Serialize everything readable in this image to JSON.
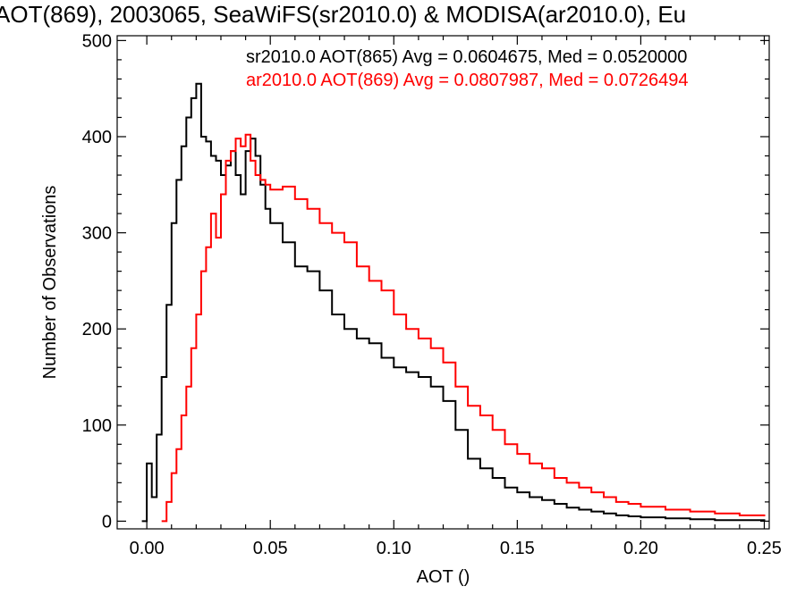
{
  "chart_data": {
    "type": "line",
    "title": "AOT(869), 2003065, SeaWiFS(sr2010.0) & MODISA(ar2010.0), Eu",
    "xlabel": "AOT ()",
    "ylabel": "Number of Observations",
    "xlim": [
      -0.012,
      0.252
    ],
    "ylim": [
      -8,
      505
    ],
    "xticks": [
      0.0,
      0.05,
      0.1,
      0.15,
      0.2,
      0.25
    ],
    "xtick_labels": [
      "0.00",
      "0.05",
      "0.10",
      "0.15",
      "0.20",
      "0.25"
    ],
    "yticks": [
      0,
      100,
      200,
      300,
      400,
      500
    ],
    "ytick_labels": [
      "0",
      "100",
      "200",
      "300",
      "400",
      "500"
    ],
    "grid": false,
    "legend_placement": "top-right",
    "series": [
      {
        "name": "sr2010.0 AOT(865) Avg = 0.0604675, Med = 0.0520000",
        "color": "#000000",
        "x": [
          -0.002,
          0.0,
          0.002,
          0.004,
          0.006,
          0.008,
          0.01,
          0.012,
          0.014,
          0.016,
          0.018,
          0.02,
          0.022,
          0.024,
          0.026,
          0.028,
          0.03,
          0.032,
          0.034,
          0.036,
          0.038,
          0.04,
          0.042,
          0.044,
          0.046,
          0.048,
          0.05,
          0.055,
          0.06,
          0.065,
          0.07,
          0.075,
          0.08,
          0.085,
          0.09,
          0.095,
          0.1,
          0.105,
          0.11,
          0.115,
          0.12,
          0.125,
          0.13,
          0.135,
          0.14,
          0.145,
          0.15,
          0.155,
          0.16,
          0.165,
          0.17,
          0.175,
          0.18,
          0.185,
          0.19,
          0.195,
          0.2,
          0.21,
          0.22,
          0.23,
          0.24,
          0.25
        ],
        "y": [
          0,
          60,
          25,
          90,
          150,
          225,
          310,
          355,
          390,
          420,
          440,
          455,
          400,
          395,
          380,
          375,
          360,
          370,
          385,
          360,
          340,
          385,
          398,
          380,
          350,
          325,
          310,
          290,
          265,
          260,
          240,
          215,
          200,
          190,
          185,
          170,
          160,
          155,
          150,
          140,
          125,
          95,
          65,
          55,
          45,
          35,
          30,
          25,
          22,
          18,
          14,
          12,
          10,
          8,
          6,
          5,
          4,
          3,
          2,
          1,
          1,
          0
        ]
      },
      {
        "name": "ar2010.0 AOT(869) Avg = 0.0807987, Med = 0.0726494",
        "color": "#ff0000",
        "x": [
          0.006,
          0.008,
          0.01,
          0.012,
          0.014,
          0.016,
          0.018,
          0.02,
          0.022,
          0.024,
          0.026,
          0.028,
          0.03,
          0.032,
          0.034,
          0.036,
          0.038,
          0.04,
          0.042,
          0.044,
          0.046,
          0.048,
          0.05,
          0.055,
          0.06,
          0.065,
          0.07,
          0.075,
          0.08,
          0.085,
          0.09,
          0.095,
          0.1,
          0.105,
          0.11,
          0.115,
          0.12,
          0.125,
          0.13,
          0.135,
          0.14,
          0.145,
          0.15,
          0.155,
          0.16,
          0.165,
          0.17,
          0.175,
          0.18,
          0.185,
          0.19,
          0.195,
          0.2,
          0.21,
          0.22,
          0.23,
          0.24,
          0.25
        ],
        "y": [
          0,
          20,
          50,
          75,
          110,
          140,
          180,
          215,
          260,
          285,
          320,
          295,
          340,
          375,
          385,
          398,
          390,
          402,
          375,
          360,
          355,
          350,
          345,
          348,
          335,
          325,
          310,
          300,
          290,
          265,
          250,
          240,
          215,
          200,
          190,
          180,
          165,
          140,
          120,
          110,
          95,
          80,
          70,
          60,
          55,
          45,
          40,
          35,
          30,
          25,
          20,
          18,
          15,
          12,
          10,
          8,
          6,
          5
        ]
      }
    ]
  }
}
